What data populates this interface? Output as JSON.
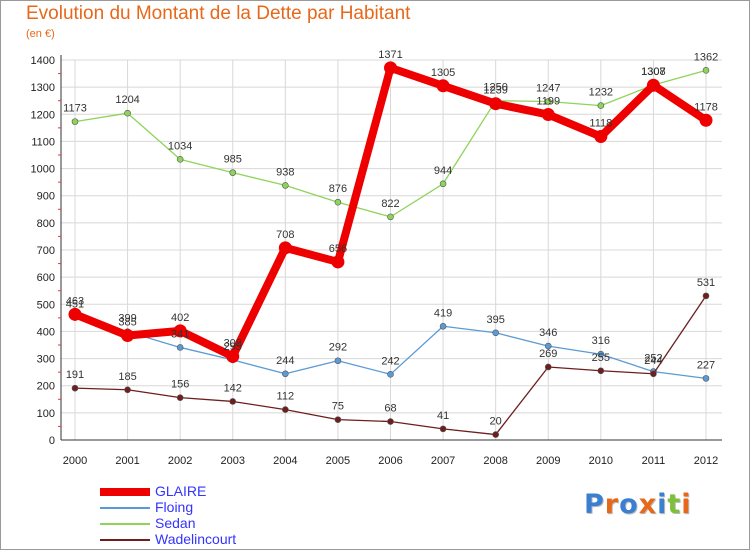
{
  "chart_data": {
    "type": "line",
    "title": "Evolution du Montant de la Dette par Habitant",
    "subtitle": "(en €)",
    "x": [
      "2000",
      "2001",
      "2002",
      "2003",
      "2004",
      "2005",
      "2006",
      "2007",
      "2008",
      "2009",
      "2010",
      "2011",
      "2012"
    ],
    "ylim": [
      0,
      1400
    ],
    "yticks": [
      0,
      100,
      200,
      300,
      400,
      500,
      600,
      700,
      800,
      900,
      1000,
      1100,
      1200,
      1300,
      1400
    ],
    "grid": true,
    "legend_position": "bottom-left",
    "series": [
      {
        "name": "GLAIRE",
        "color": "#ee0000",
        "values": [
          463,
          385,
          402,
          308,
          708,
          656,
          1371,
          1305,
          1239,
          1199,
          1118,
          1307,
          1178
        ]
      },
      {
        "name": "Floing",
        "color": "#5b9bd5",
        "values": [
          451,
          399,
          341,
          295,
          244,
          292,
          242,
          419,
          395,
          346,
          316,
          252,
          227
        ]
      },
      {
        "name": "Sedan",
        "color": "#8ed45a",
        "values": [
          1173,
          1204,
          1034,
          985,
          938,
          876,
          822,
          944,
          1250,
          1247,
          1232,
          1308,
          1362
        ]
      },
      {
        "name": "Wadelincourt",
        "color": "#6e1e1e",
        "values": [
          191,
          185,
          156,
          142,
          112,
          75,
          68,
          41,
          20,
          269,
          255,
          244,
          531
        ]
      }
    ]
  },
  "logo": {
    "letters": [
      "P",
      "r",
      "o",
      "x",
      "i",
      "t",
      "i"
    ],
    "colors": [
      "#3a7fd0",
      "#e8681a",
      "#3a7fd0",
      "#e8681a",
      "#3a7fd0",
      "#7ec03a",
      "#e8681a"
    ]
  }
}
